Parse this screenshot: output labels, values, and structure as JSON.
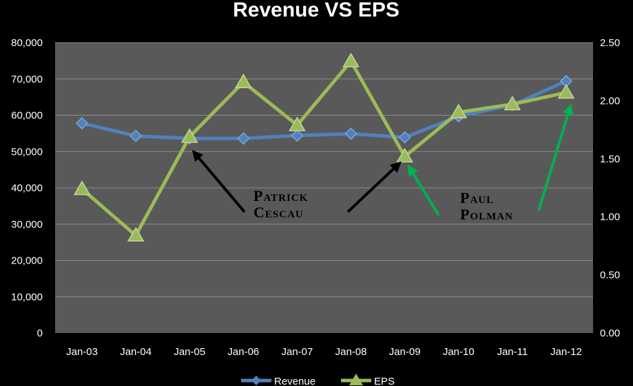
{
  "chart_data": {
    "type": "line",
    "title": "Revenue VS EPS",
    "categories": [
      "Jan-03",
      "Jan-04",
      "Jan-05",
      "Jan-06",
      "Jan-07",
      "Jan-08",
      "Jan-09",
      "Jan-10",
      "Jan-11",
      "Jan-12"
    ],
    "series": [
      {
        "name": "Revenue",
        "axis": "left",
        "color": "#4f81bd",
        "marker": "diamond",
        "values": [
          57800,
          54300,
          53600,
          53600,
          54400,
          54900,
          53900,
          59700,
          62800,
          69400
        ]
      },
      {
        "name": "EPS",
        "axis": "right",
        "color": "#9bbb59",
        "marker": "triangle",
        "values": [
          1.24,
          0.84,
          1.69,
          2.16,
          1.79,
          2.34,
          1.52,
          1.9,
          1.97,
          2.07
        ]
      }
    ],
    "y_left": {
      "min": 0,
      "max": 80000,
      "step": 10000,
      "ticks": [
        "0",
        "10,000",
        "20,000",
        "30,000",
        "40,000",
        "50,000",
        "60,000",
        "70,000",
        "80,000"
      ]
    },
    "y_right": {
      "min": 0,
      "max": 2.5,
      "step": 0.5,
      "ticks": [
        "0.00",
        "0.50",
        "1.00",
        "1.50",
        "2.00",
        "2.50"
      ]
    },
    "grid": true,
    "legend_position": "bottom",
    "annotations": [
      {
        "lines": [
          "Patrick",
          "Cescau"
        ],
        "arrow_color": "#000000",
        "points_to": [
          "Jan-05",
          "Jan-09"
        ]
      },
      {
        "lines": [
          "Paul",
          "Polman"
        ],
        "arrow_color": "#00b050",
        "points_to": [
          "Jan-09",
          "Jan-12"
        ]
      }
    ]
  }
}
